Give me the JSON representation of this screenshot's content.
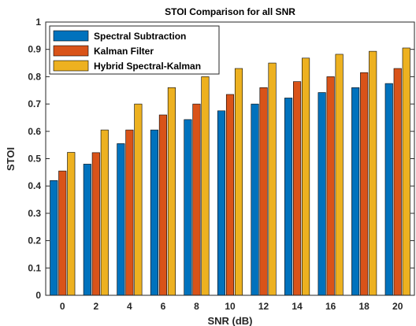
{
  "chart_data": {
    "type": "bar",
    "title": "STOI Comparison for all SNR",
    "xlabel": "SNR (dB)",
    "ylabel": "STOI",
    "categories": [
      "0",
      "2",
      "4",
      "6",
      "8",
      "10",
      "12",
      "14",
      "16",
      "18",
      "20"
    ],
    "ylim": [
      0,
      1
    ],
    "yticks": [
      "0",
      "0.1",
      "0.2",
      "0.3",
      "0.4",
      "0.5",
      "0.6",
      "0.7",
      "0.8",
      "0.9",
      "1"
    ],
    "grid": false,
    "legend_position": "top-left",
    "series": [
      {
        "name": "Spectral Subtraction",
        "color": "#0072BD",
        "values": [
          0.42,
          0.48,
          0.555,
          0.605,
          0.643,
          0.675,
          0.7,
          0.722,
          0.742,
          0.76,
          0.775
        ]
      },
      {
        "name": "Kalman Filter",
        "color": "#D95319",
        "values": [
          0.455,
          0.522,
          0.605,
          0.66,
          0.7,
          0.735,
          0.76,
          0.782,
          0.8,
          0.815,
          0.83
        ]
      },
      {
        "name": "Hybrid Spectral-Kalman",
        "color": "#EDB120",
        "values": [
          0.523,
          0.605,
          0.7,
          0.76,
          0.8,
          0.83,
          0.85,
          0.868,
          0.882,
          0.893,
          0.905
        ]
      }
    ]
  }
}
